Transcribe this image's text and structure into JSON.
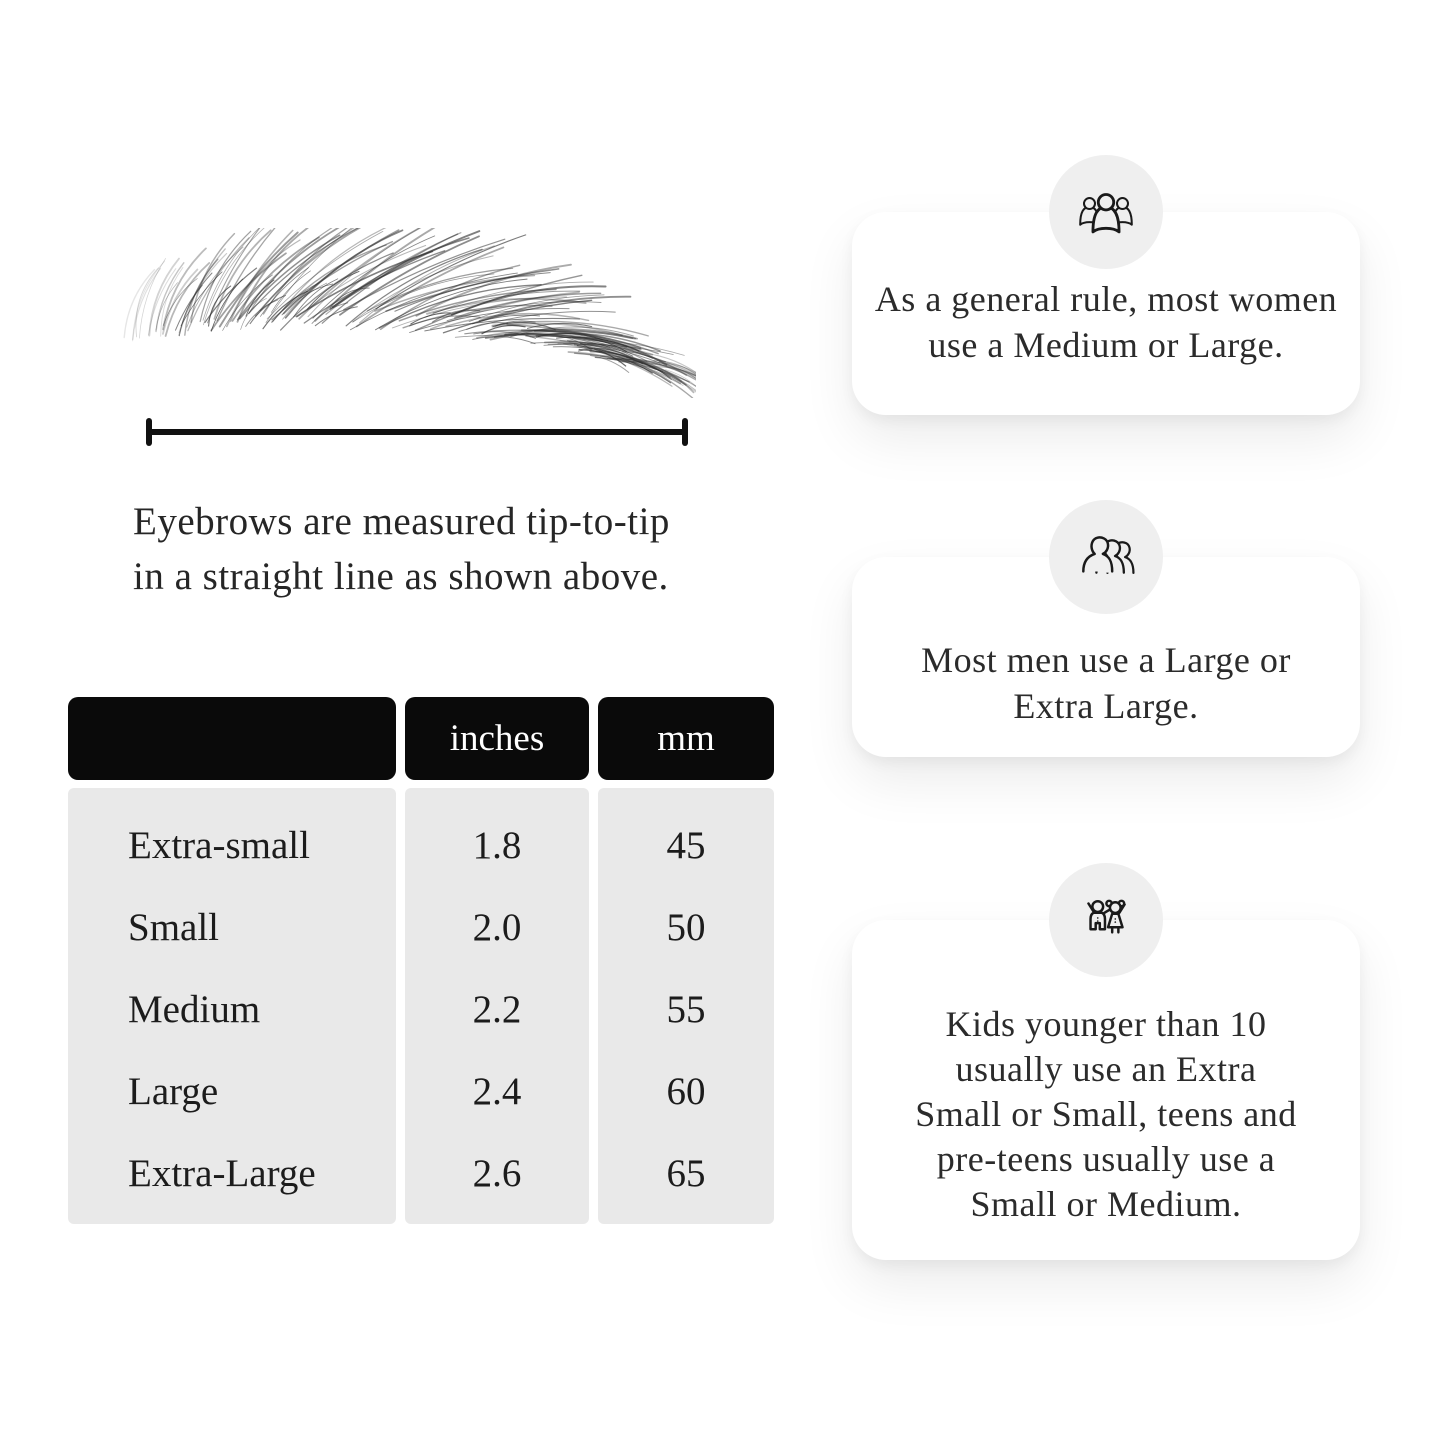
{
  "page": {
    "background": "#ffffff"
  },
  "colors": {
    "table_header_bg": "#0a0a0a",
    "table_header_text": "#ffffff",
    "table_body_bg": "#e9e9e9",
    "text_primary": "#222222",
    "card_bg": "#ffffff",
    "icon_circle_bg": "#efefef",
    "measurement_line": "#111111"
  },
  "diagram": {
    "illustration": "eyebrow-sketch",
    "measurement_line": "tip-to-tip ruler line",
    "caption_lines": [
      "Eyebrows are measured tip-to-tip",
      "in a straight line as shown above."
    ]
  },
  "size_table": {
    "header": {
      "label": "",
      "inches": "inches",
      "mm": "mm"
    },
    "rows": [
      {
        "label": "Extra-small",
        "inches": "1.8",
        "mm": "45"
      },
      {
        "label": "Small",
        "inches": "2.0",
        "mm": "50"
      },
      {
        "label": "Medium",
        "inches": "2.2",
        "mm": "55"
      },
      {
        "label": "Large",
        "inches": "2.4",
        "mm": "60"
      },
      {
        "label": "Extra-Large",
        "inches": "2.6",
        "mm": "65"
      }
    ]
  },
  "cards": [
    {
      "icon": "women-group-icon",
      "lines": [
        "As a general rule, most women",
        "use a Medium or Large."
      ]
    },
    {
      "icon": "men-group-icon",
      "lines": [
        "Most men use a Large or",
        "Extra Large."
      ]
    },
    {
      "icon": "kids-icon",
      "lines": [
        "Kids younger than 10",
        "usually use an Extra",
        "Small or Small, teens and",
        "pre-teens usually use a",
        "Small or Medium."
      ]
    }
  ]
}
